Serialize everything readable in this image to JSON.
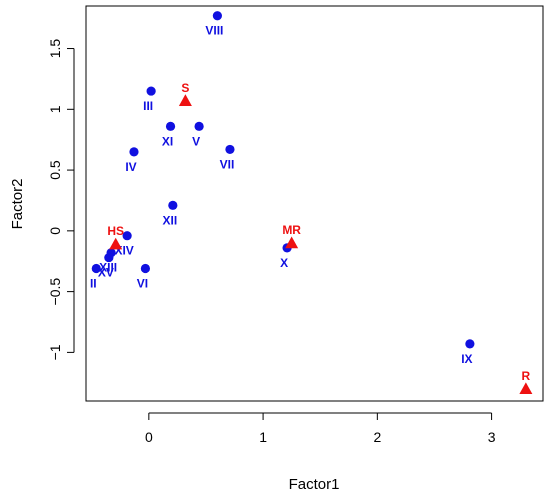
{
  "chart_data": {
    "type": "scatter",
    "xlabel": "Factor1",
    "ylabel": "Factor2",
    "xlim": [
      -0.55,
      3.45
    ],
    "ylim": [
      -1.4,
      1.85
    ],
    "x_ticks": [
      0,
      1,
      2,
      3
    ],
    "y_ticks": [
      -1,
      -0.5,
      0,
      0.5,
      1,
      1.5
    ],
    "x_tick_labels": [
      "0",
      "1",
      "2",
      "3"
    ],
    "y_tick_labels": [
      "−1",
      "−0.5",
      "0",
      "0.5",
      "1",
      "1.5"
    ],
    "grid": false,
    "colors": {
      "circles": "#1010e0",
      "triangles": "#ee1111"
    },
    "series": [
      {
        "marker": "circle",
        "color": "#1010e0",
        "points": [
          {
            "label": "VIII",
            "x": 0.6,
            "y": 1.77
          },
          {
            "label": "III",
            "x": 0.02,
            "y": 1.15
          },
          {
            "label": "XI",
            "x": 0.19,
            "y": 0.86
          },
          {
            "label": "V",
            "x": 0.44,
            "y": 0.86
          },
          {
            "label": "IV",
            "x": -0.13,
            "y": 0.65
          },
          {
            "label": "VII",
            "x": 0.71,
            "y": 0.67
          },
          {
            "label": "XII",
            "x": 0.21,
            "y": 0.21
          },
          {
            "label": "XIV",
            "x": -0.19,
            "y": -0.04
          },
          {
            "label": "XIII",
            "x": -0.33,
            "y": -0.18
          },
          {
            "label": "XV",
            "x": -0.35,
            "y": -0.22
          },
          {
            "label": "II",
            "x": -0.46,
            "y": -0.31
          },
          {
            "label": "VI",
            "x": -0.03,
            "y": -0.31
          },
          {
            "label": "X",
            "x": 1.21,
            "y": -0.14
          },
          {
            "label": "IX",
            "x": 2.81,
            "y": -0.93
          }
        ]
      },
      {
        "marker": "triangle",
        "color": "#ee1111",
        "points": [
          {
            "label": "S",
            "x": 0.32,
            "y": 1.07
          },
          {
            "label": "HS",
            "x": -0.29,
            "y": -0.11
          },
          {
            "label": "MR",
            "x": 1.25,
            "y": -0.1
          },
          {
            "label": "R",
            "x": 3.3,
            "y": -1.3
          }
        ]
      }
    ]
  }
}
